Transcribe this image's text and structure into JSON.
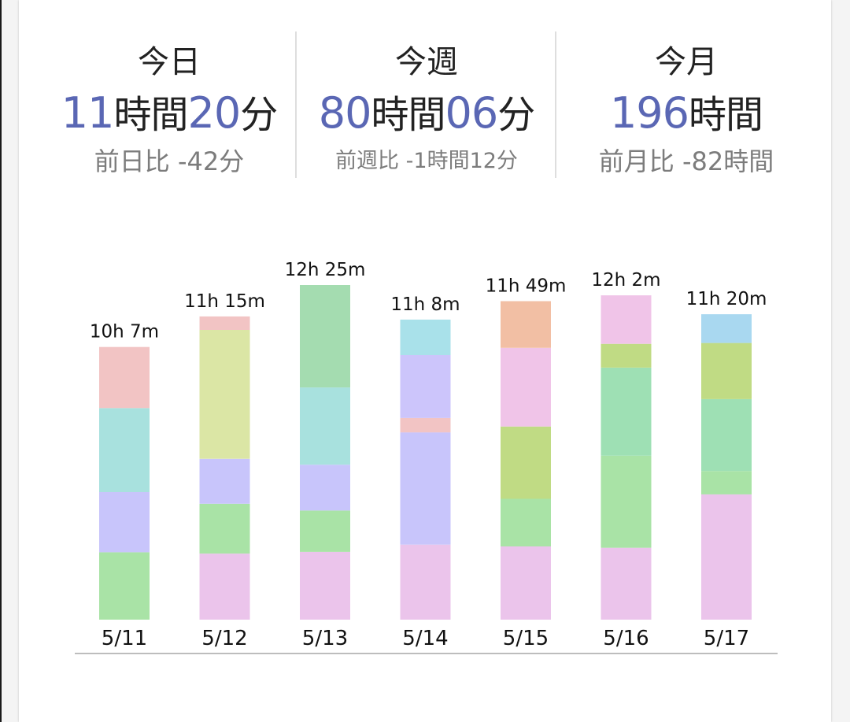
{
  "stats": {
    "today": {
      "title": "今日",
      "v1": "11",
      "u1": "時間",
      "v2": "20",
      "u2": "分",
      "cmp": "前日比 -42分"
    },
    "week": {
      "title": "今週",
      "v1": "80",
      "u1": "時間",
      "v2": "06",
      "u2": "分",
      "cmp": "前週比 -1時間12分"
    },
    "month": {
      "title": "今月",
      "v1": "196",
      "u1": "時間",
      "cmp": "前月比 -82時間"
    }
  },
  "chart_data": {
    "type": "bar",
    "stacked": true,
    "categories": [
      "5/11",
      "5/12",
      "5/13",
      "5/14",
      "5/15",
      "5/16",
      "5/17"
    ],
    "totals": [
      "10h 7m",
      "11h 15m",
      "12h 25m",
      "11h 8m",
      "11h 49m",
      "12h 2m",
      "11h 20m"
    ],
    "total_minutes": [
      607,
      675,
      745,
      668,
      709,
      722,
      680
    ],
    "ylim": [
      0,
      745
    ],
    "stacks": [
      [
        {
          "value": 150,
          "color": "#a9e3a6"
        },
        {
          "value": 134,
          "color": "#c8c5fb"
        },
        {
          "value": 187,
          "color": "#a8e1de"
        },
        {
          "value": 136,
          "color": "#f2c4c4"
        }
      ],
      [
        {
          "value": 147,
          "color": "#ebc4eb"
        },
        {
          "value": 111,
          "color": "#a9e3a6"
        },
        {
          "value": 100,
          "color": "#c8c5fb"
        },
        {
          "value": 287,
          "color": "#dbe6a5"
        },
        {
          "value": 30,
          "color": "#f2c4c4"
        }
      ],
      [
        {
          "value": 151,
          "color": "#ebc4eb"
        },
        {
          "value": 92,
          "color": "#a9e3a6"
        },
        {
          "value": 102,
          "color": "#c8c5fb"
        },
        {
          "value": 172,
          "color": "#a8e1de"
        },
        {
          "value": 228,
          "color": "#a4dcb0"
        }
      ],
      [
        {
          "value": 167,
          "color": "#ebc4eb"
        },
        {
          "value": 250,
          "color": "#c8c5fb"
        },
        {
          "value": 32,
          "color": "#f2c4c4"
        },
        {
          "value": 140,
          "color": "#ccc5fb"
        },
        {
          "value": 79,
          "color": "#a9e1ea"
        }
      ],
      [
        {
          "value": 163,
          "color": "#ebc4eb"
        },
        {
          "value": 106,
          "color": "#a9e3a6"
        },
        {
          "value": 161,
          "color": "#c0db84"
        },
        {
          "value": 175,
          "color": "#f0c4e8"
        },
        {
          "value": 104,
          "color": "#f2bfa4"
        }
      ],
      [
        {
          "value": 160,
          "color": "#ebc4eb"
        },
        {
          "value": 205,
          "color": "#a9e3a6"
        },
        {
          "value": 196,
          "color": "#9ee0b4"
        },
        {
          "value": 53,
          "color": "#c0db84"
        },
        {
          "value": 108,
          "color": "#f0c4e8"
        }
      ],
      [
        {
          "value": 279,
          "color": "#ebc4eb"
        },
        {
          "value": 52,
          "color": "#a9e3a6"
        },
        {
          "value": 160,
          "color": "#9ee0b4"
        },
        {
          "value": 125,
          "color": "#c0db84"
        },
        {
          "value": 64,
          "color": "#a9d8f0"
        }
      ]
    ]
  }
}
